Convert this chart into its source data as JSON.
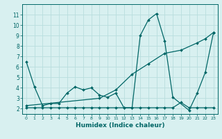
{
  "xlabel": "Humidex (Indice chaleur)",
  "background_color": "#d8f0f0",
  "line_color": "#006666",
  "grid_color": "#b8dede",
  "xlim": [
    -0.5,
    23.5
  ],
  "ylim": [
    1.5,
    12.0
  ],
  "yticks": [
    2,
    3,
    4,
    5,
    6,
    7,
    8,
    9,
    10,
    11
  ],
  "xticks": [
    0,
    1,
    2,
    3,
    4,
    5,
    6,
    7,
    8,
    9,
    10,
    11,
    12,
    13,
    14,
    15,
    16,
    17,
    18,
    19,
    20,
    21,
    22,
    23
  ],
  "series": [
    {
      "x": [
        0,
        1,
        2,
        3,
        4,
        5,
        6,
        7,
        8,
        9,
        10,
        11,
        12,
        13,
        14,
        15,
        16,
        17,
        18,
        20,
        21,
        22,
        23
      ],
      "y": [
        6.5,
        4.1,
        2.3,
        2.5,
        2.5,
        3.5,
        4.1,
        3.8,
        4.0,
        3.3,
        3.1,
        3.5,
        2.1,
        2.1,
        9.0,
        10.5,
        11.1,
        8.5,
        3.1,
        1.85,
        3.5,
        5.5,
        9.3
      ]
    },
    {
      "x": [
        0,
        1,
        2,
        3,
        4,
        5,
        6,
        7,
        8,
        9,
        10,
        11,
        12,
        13,
        14,
        15,
        16,
        17,
        18,
        19,
        20,
        21,
        22,
        23
      ],
      "y": [
        2.1,
        2.1,
        2.1,
        2.1,
        2.1,
        2.1,
        2.1,
        2.1,
        2.1,
        2.1,
        2.1,
        2.1,
        2.1,
        2.1,
        2.1,
        2.1,
        2.1,
        2.1,
        2.1,
        2.6,
        2.1,
        2.1,
        2.1,
        2.1
      ]
    },
    {
      "x": [
        0,
        9,
        11,
        13,
        15,
        17,
        19,
        21,
        22,
        23
      ],
      "y": [
        2.3,
        3.0,
        3.8,
        5.3,
        6.3,
        7.3,
        7.6,
        8.3,
        8.7,
        9.3
      ]
    }
  ]
}
